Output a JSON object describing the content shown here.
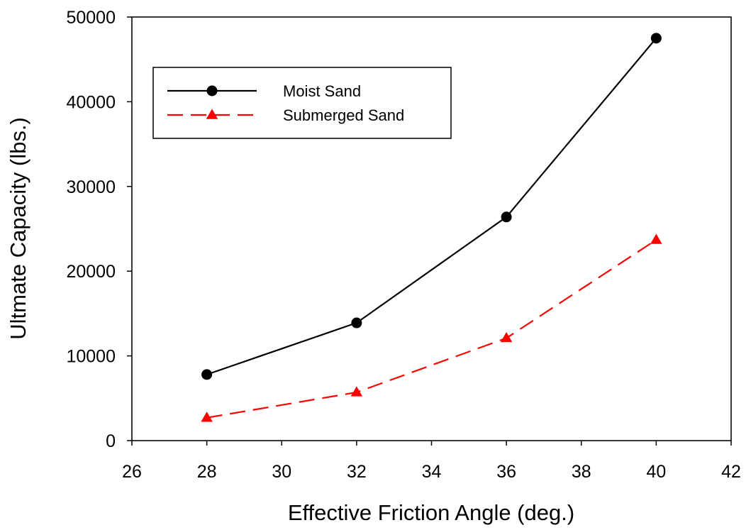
{
  "chart_data": {
    "type": "line",
    "title": "",
    "xlabel": "Effective Friction Angle (deg.)",
    "ylabel": "Ultmate Capacity (lbs.)",
    "xlim": [
      26,
      42
    ],
    "ylim": [
      0,
      50000
    ],
    "xticks": [
      26,
      28,
      30,
      32,
      34,
      36,
      38,
      40,
      42
    ],
    "yticks": [
      0,
      10000,
      20000,
      30000,
      40000,
      50000
    ],
    "grid": true,
    "legend_position": "top-left",
    "series": [
      {
        "name": "Moist Sand",
        "color": "#000000",
        "line_style": "solid",
        "marker": "circle",
        "x": [
          28,
          32,
          36,
          40
        ],
        "y": [
          7800,
          13900,
          26400,
          47500
        ]
      },
      {
        "name": "Submerged Sand",
        "color": "#ff0000",
        "line_style": "dashed",
        "marker": "triangle",
        "x": [
          28,
          32,
          36,
          40
        ],
        "y": [
          2700,
          5700,
          12100,
          23700
        ]
      }
    ]
  }
}
